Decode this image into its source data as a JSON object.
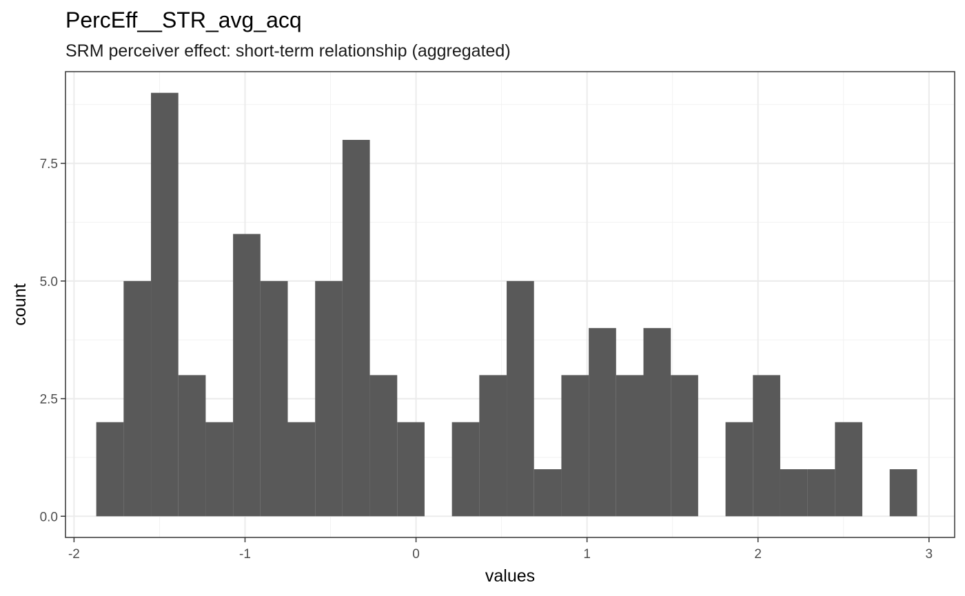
{
  "chart_data": {
    "type": "bar",
    "title": "PercEff__STR_avg_acq",
    "subtitle": "SRM perceiver effect: short-term relationship (aggregated)",
    "xlabel": "values",
    "ylabel": "count",
    "xlim": [
      -2.05,
      3.15
    ],
    "ylim": [
      -0.45,
      9.45
    ],
    "x_ticks": [
      -2,
      -1,
      0,
      1,
      2,
      3
    ],
    "x_tick_labels": [
      "-2",
      "-1",
      "0",
      "1",
      "2",
      "3"
    ],
    "y_ticks": [
      0,
      2.5,
      5,
      7.5
    ],
    "y_tick_labels": [
      "0.0",
      "2.5",
      "5.0",
      "7.5"
    ],
    "grid": true,
    "legend": "none",
    "bar_color": "#595959",
    "bins": [
      {
        "x0": -1.87,
        "x1": -1.71,
        "count": 2
      },
      {
        "x0": -1.71,
        "x1": -1.55,
        "count": 5
      },
      {
        "x0": -1.55,
        "x1": -1.39,
        "count": 9
      },
      {
        "x0": -1.39,
        "x1": -1.23,
        "count": 3
      },
      {
        "x0": -1.23,
        "x1": -1.07,
        "count": 2
      },
      {
        "x0": -1.07,
        "x1": -0.91,
        "count": 6
      },
      {
        "x0": -0.91,
        "x1": -0.75,
        "count": 5
      },
      {
        "x0": -0.75,
        "x1": -0.59,
        "count": 2
      },
      {
        "x0": -0.59,
        "x1": -0.43,
        "count": 5
      },
      {
        "x0": -0.43,
        "x1": -0.27,
        "count": 8
      },
      {
        "x0": -0.27,
        "x1": -0.11,
        "count": 3
      },
      {
        "x0": -0.11,
        "x1": 0.05,
        "count": 2
      },
      {
        "x0": 0.05,
        "x1": 0.21,
        "count": 0
      },
      {
        "x0": 0.21,
        "x1": 0.37,
        "count": 2
      },
      {
        "x0": 0.37,
        "x1": 0.53,
        "count": 3
      },
      {
        "x0": 0.53,
        "x1": 0.69,
        "count": 5
      },
      {
        "x0": 0.69,
        "x1": 0.85,
        "count": 1
      },
      {
        "x0": 0.85,
        "x1": 1.01,
        "count": 3
      },
      {
        "x0": 1.01,
        "x1": 1.17,
        "count": 4
      },
      {
        "x0": 1.17,
        "x1": 1.33,
        "count": 3
      },
      {
        "x0": 1.33,
        "x1": 1.49,
        "count": 4
      },
      {
        "x0": 1.49,
        "x1": 1.65,
        "count": 3
      },
      {
        "x0": 1.65,
        "x1": 1.81,
        "count": 0
      },
      {
        "x0": 1.81,
        "x1": 1.97,
        "count": 2
      },
      {
        "x0": 1.97,
        "x1": 2.13,
        "count": 3
      },
      {
        "x0": 2.13,
        "x1": 2.29,
        "count": 1
      },
      {
        "x0": 2.29,
        "x1": 2.45,
        "count": 1
      },
      {
        "x0": 2.45,
        "x1": 2.61,
        "count": 2
      },
      {
        "x0": 2.61,
        "x1": 2.77,
        "count": 0
      },
      {
        "x0": 2.77,
        "x1": 2.93,
        "count": 1
      }
    ]
  }
}
